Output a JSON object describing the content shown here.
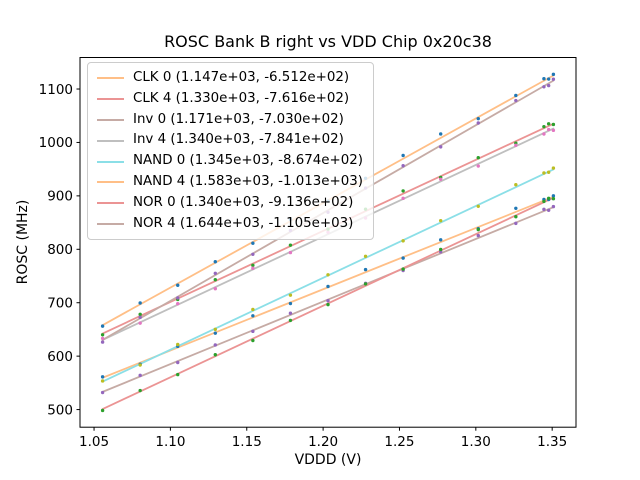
{
  "chart_data": {
    "type": "scatter",
    "title": "ROSC Bank B right vs VDD Chip 0x20c38",
    "xlabel": "VDDD (V)",
    "ylabel": "ROSC (MHz)",
    "xlim": [
      1.0408,
      1.3656
    ],
    "ylim": [
      467,
      1159
    ],
    "grid": false,
    "legend_position": "upper left",
    "xticks": [
      {
        "value": 1.05,
        "label": "1.05"
      },
      {
        "value": 1.1,
        "label": "1.10"
      },
      {
        "value": 1.15,
        "label": "1.15"
      },
      {
        "value": 1.2,
        "label": "1.20"
      },
      {
        "value": 1.25,
        "label": "1.25"
      },
      {
        "value": 1.3,
        "label": "1.30"
      },
      {
        "value": 1.35,
        "label": "1.35"
      }
    ],
    "yticks": [
      {
        "value": 500,
        "label": "500"
      },
      {
        "value": 600,
        "label": "600"
      },
      {
        "value": 700,
        "label": "700"
      },
      {
        "value": 800,
        "label": "800"
      },
      {
        "value": 900,
        "label": "900"
      },
      {
        "value": 1000,
        "label": "1000"
      },
      {
        "value": 1100,
        "label": "1100"
      }
    ],
    "x": [
      1.0556,
      1.0802,
      1.1048,
      1.1294,
      1.154,
      1.1786,
      1.2032,
      1.2278,
      1.2524,
      1.277,
      1.3016,
      1.3262,
      1.3446,
      1.3477,
      1.3508
    ],
    "series": [
      {
        "name": "CLK 0",
        "legend_label": "CLK 0 (1.147e+03, -6.512e+02)",
        "fit_slope": 1147,
        "fit_intercept": -651.2,
        "line_color": "#ffbf87",
        "dot_color": "#1f77b4",
        "y": [
          561.2,
          585.0,
          618.4,
          643.0,
          675.5,
          698.5,
          730.4,
          762.0,
          783.5,
          817.7,
          838.6,
          876.8,
          893.2,
          893.2,
          900.1
        ]
      },
      {
        "name": "CLK 4",
        "legend_label": "CLK 4 (1.330e+03, -7.616e+02)",
        "fit_slope": 1330,
        "fit_intercept": -761.6,
        "line_color": "#eb9494",
        "dot_color": "#2ca02c",
        "y": [
          640.0,
          678.2,
          706.1,
          743.1,
          770.0,
          807.7,
          837.6,
          875.1,
          909.3,
          934.4,
          971.4,
          998.6,
          1029.5,
          1034.9,
          1033.7
        ]
      },
      {
        "name": "Inv 0",
        "legend_label": "Inv 0 (1.171e+03, -7.030e+02)",
        "fit_slope": 1171,
        "fit_intercept": -703.0,
        "line_color": "#c6aba5",
        "dot_color": "#9467bd",
        "y": [
          531.9,
          564.1,
          588.1,
          620.9,
          646.4,
          680.3,
          703.8,
          736.4,
          760.2,
          795.1,
          825.6,
          848.5,
          874.7,
          873.0,
          879.9
        ]
      },
      {
        "name": "Inv 4",
        "legend_label": "Inv 4 (1.340e+03, -7.841e+02)",
        "fit_slope": 1340,
        "fit_intercept": -784.1,
        "line_color": "#bfbfbf",
        "dot_color": "#e377c2",
        "y": [
          633.2,
          661.8,
          698.2,
          726.2,
          764.5,
          793.8,
          831.8,
          858.5,
          895.4,
          931.0,
          955.8,
          994.7,
          1015.8,
          1024.2,
          1022.7
        ]
      },
      {
        "name": "NAND 0",
        "legend_label": "NAND 0 (1.345e+03, -8.674e+02)",
        "fit_slope": 1345,
        "fit_intercept": -867.4,
        "line_color": "#8bdfe7",
        "dot_color": "#bcbd22",
        "y": [
          553.5,
          583.4,
          621.9,
          650.1,
          687.4,
          714.1,
          752.3,
          786.9,
          815.8,
          853.6,
          880.5,
          920.9,
          942.9,
          944.2,
          952.0
        ]
      },
      {
        "name": "NAND 4",
        "legend_label": "NAND 4 (1.583e+03, -1.013e+03)",
        "fit_slope": 1583,
        "fit_intercept": -1013.0,
        "line_color": "#ffbf87",
        "dot_color": "#1f77b4",
        "y": [
          656.2,
          699.5,
          732.7,
          776.7,
          811.4,
          855.8,
          890.1,
          932.9,
          975.6,
          1015.9,
          1044.5,
          1087.9,
          1119.3,
          1118.7,
          1127.5
        ]
      },
      {
        "name": "NOR 0",
        "legend_label": "NOR 0 (1.340e+03, -9.136e+02)",
        "fit_slope": 1340,
        "fit_intercept": -913.6,
        "line_color": "#eb9494",
        "dot_color": "#2ca02c",
        "y": [
          498.3,
          535.6,
          565.5,
          602.6,
          629.3,
          666.9,
          696.5,
          735.2,
          762.9,
          799.7,
          836.8,
          861.0,
          889.6,
          895.5,
          894.7
        ]
      },
      {
        "name": "NOR 4",
        "legend_label": "NOR 4 (1.644e+03, -1.105e+03)",
        "fit_slope": 1644,
        "fit_intercept": -1105.0,
        "line_color": "#c6aba5",
        "dot_color": "#9467bd",
        "y": [
          626.3,
          672.6,
          709.0,
          755.1,
          790.7,
          835.2,
          869.3,
          914.7,
          956.4,
          991.7,
          1036.4,
          1078.4,
          1104.2,
          1106.4,
          1118.4
        ]
      }
    ]
  },
  "style": {
    "spine_color": "#000000",
    "legend_border_color": "#cccccc"
  }
}
